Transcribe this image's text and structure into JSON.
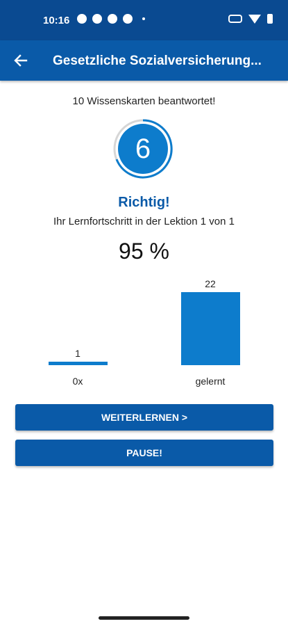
{
  "status_bar": {
    "time": "10:16"
  },
  "app_bar": {
    "title": "Gesetzliche Sozialversicherung..."
  },
  "summary": {
    "answered_text": "10 Wissenskarten beantwortet!",
    "ring_number": "6",
    "result_label": "Richtig!",
    "progress_text": "Ihr Lernfortschritt in der Lektion 1 von 1",
    "percent": "95 %"
  },
  "chart_data": {
    "type": "bar",
    "categories": [
      "0x",
      "gelernt"
    ],
    "values": [
      1,
      22
    ],
    "value_labels": [
      "1",
      "22"
    ],
    "colors": [
      "#0d7ccc"
    ]
  },
  "buttons": {
    "continue": "WEITERLERNEN >",
    "pause": "PAUSE!"
  },
  "colors": {
    "status_bar": "#0a4a91",
    "app_bar": "#0a5aa8",
    "accent": "#0a5aa8",
    "bar": "#0d7ccc"
  },
  "icons": {
    "back": "arrow-left-icon"
  }
}
